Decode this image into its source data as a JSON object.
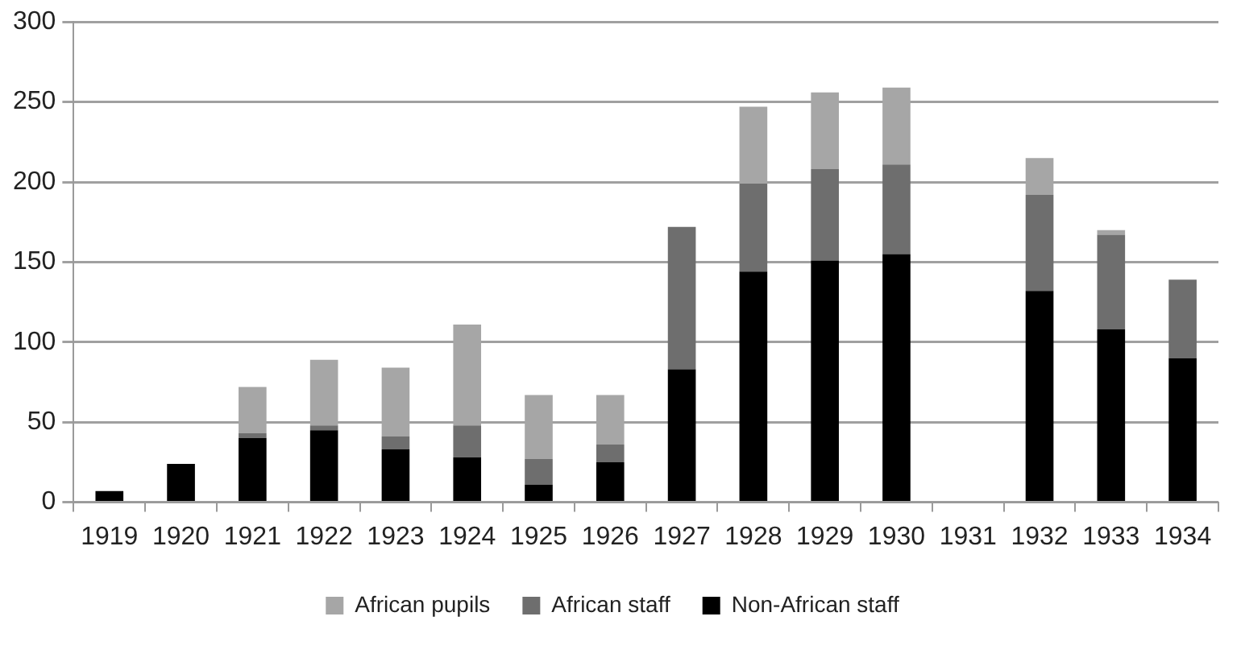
{
  "chart_data": {
    "type": "bar",
    "stacked": true,
    "categories": [
      "1919",
      "1920",
      "1921",
      "1922",
      "1923",
      "1924",
      "1925",
      "1926",
      "1927",
      "1928",
      "1929",
      "1930",
      "1931",
      "1932",
      "1933",
      "1934"
    ],
    "series": [
      {
        "name": "Non-African staff",
        "color": "#000000",
        "values": [
          7,
          24,
          40,
          45,
          33,
          28,
          11,
          25,
          83,
          144,
          151,
          155,
          null,
          132,
          108,
          90
        ]
      },
      {
        "name": "African staff",
        "color": "#6e6e6e",
        "values": [
          0,
          0,
          3,
          3,
          8,
          20,
          16,
          11,
          89,
          55,
          57,
          56,
          null,
          60,
          59,
          49
        ]
      },
      {
        "name": "African pupils",
        "color": "#a6a6a6",
        "values": [
          0,
          0,
          29,
          41,
          43,
          63,
          40,
          31,
          0,
          48,
          48,
          48,
          null,
          23,
          3,
          0
        ]
      }
    ],
    "ylim": [
      0,
      300
    ],
    "yticks": [
      0,
      50,
      100,
      150,
      200,
      250,
      300
    ],
    "grid": "y",
    "legend": "bottom"
  }
}
